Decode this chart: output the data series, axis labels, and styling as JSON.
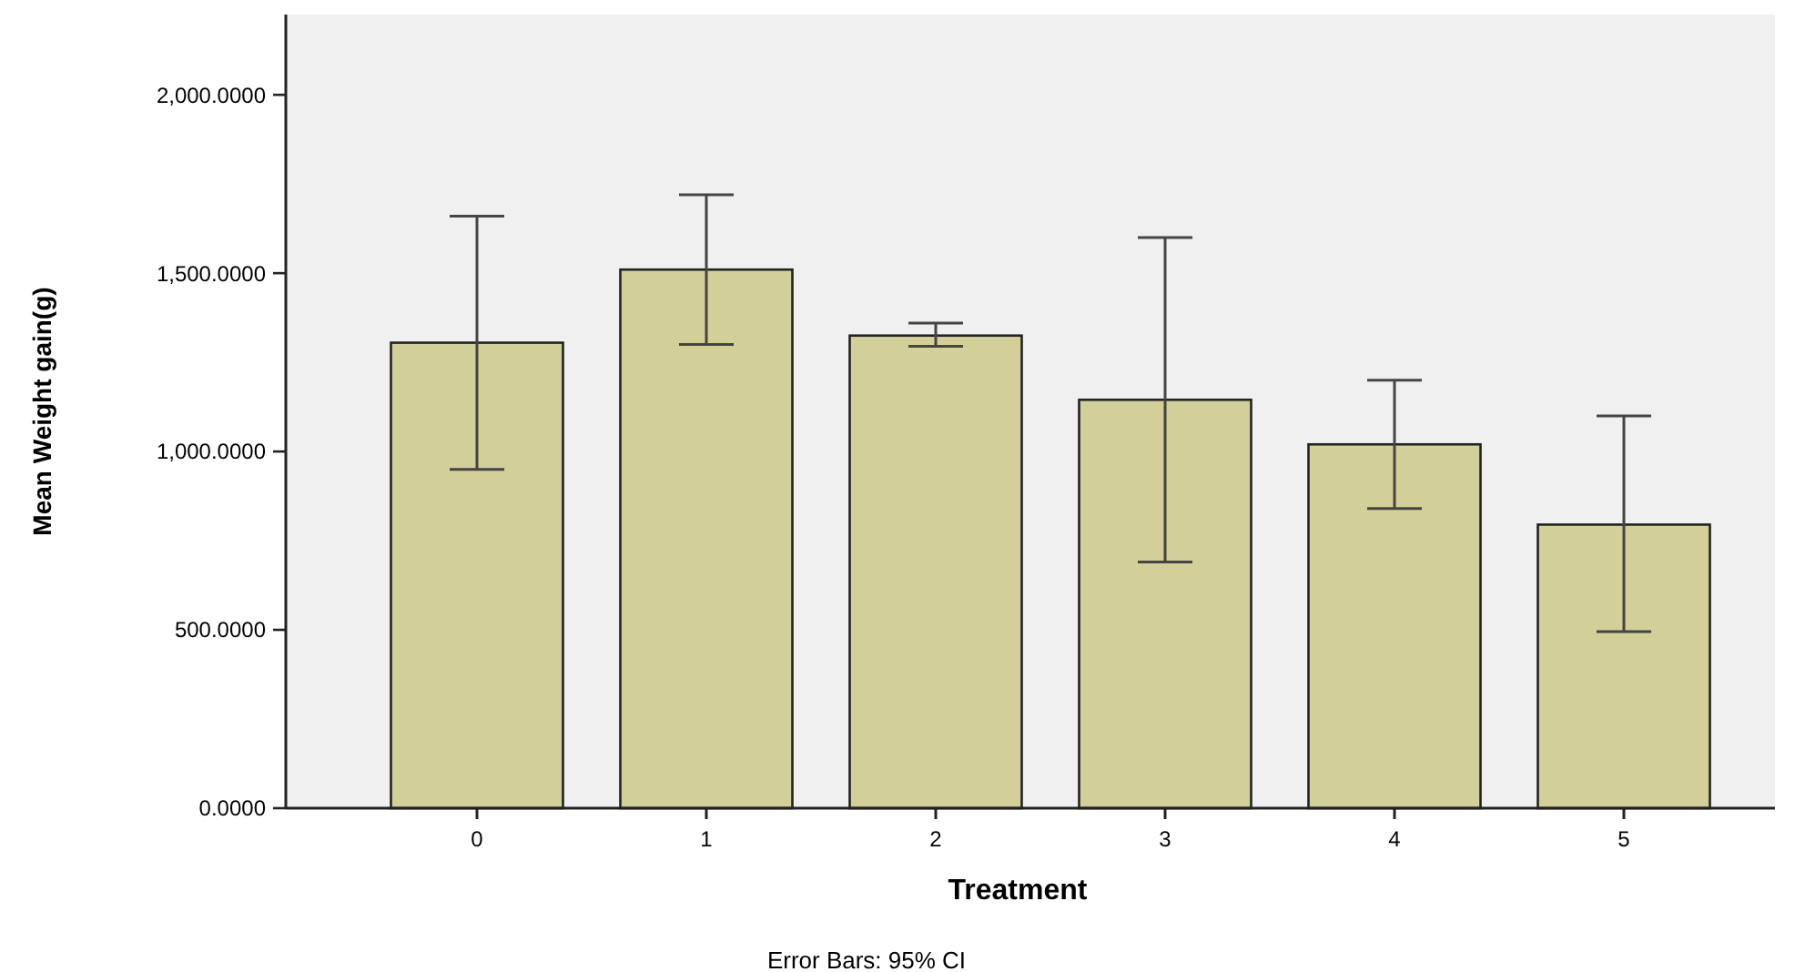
{
  "chart_data": {
    "type": "bar",
    "xlabel": "Treatment",
    "ylabel": "Mean Weight gain(g)",
    "annotations": [
      "Error Bars: 95% CI"
    ],
    "categories": [
      "0",
      "1",
      "2",
      "3",
      "4",
      "5"
    ],
    "values": [
      1305,
      1510,
      1325,
      1145,
      1020,
      795
    ],
    "errors": [
      [
        950,
        1660
      ],
      [
        1300,
        1720
      ],
      [
        1295,
        1360
      ],
      [
        690,
        1600
      ],
      [
        840,
        1200
      ],
      [
        495,
        1100
      ]
    ],
    "color": "#d3cf98",
    "ylim": [
      0,
      2225
    ],
    "yticks": [
      {
        "value": 0,
        "label": "0.0000"
      },
      {
        "value": 500,
        "label": "500.0000"
      },
      {
        "value": 1000,
        "label": "1,000.0000"
      },
      {
        "value": 1500,
        "label": "1,500.0000"
      },
      {
        "value": 2000,
        "label": "2,000.0000"
      }
    ]
  }
}
